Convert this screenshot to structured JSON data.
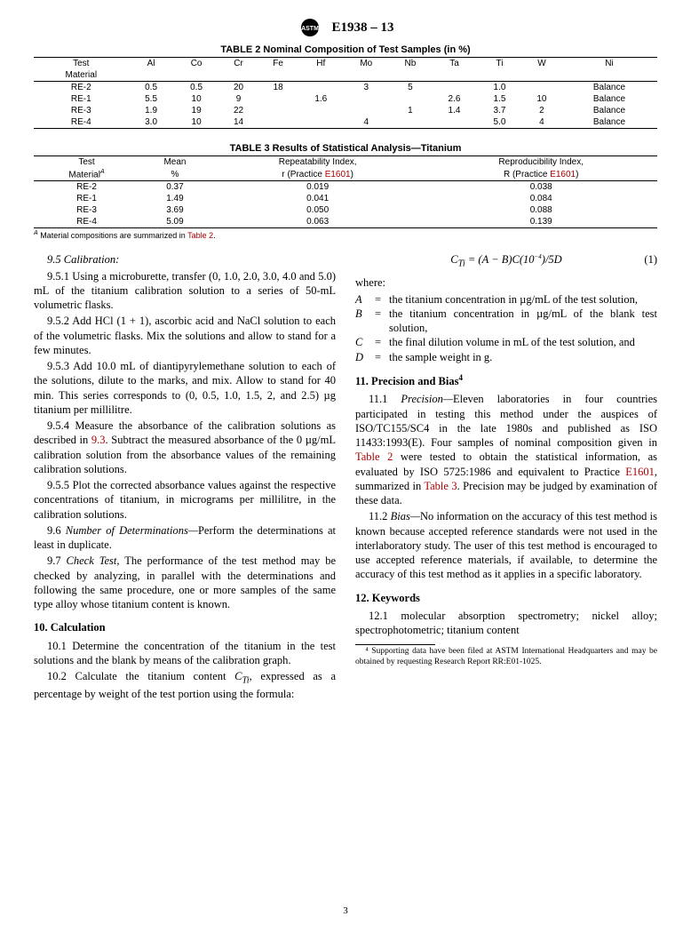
{
  "designation": "E1938 – 13",
  "table2": {
    "title": "TABLE 2 Nominal Composition of Test Samples (in %)",
    "columns": [
      "Test\nMaterial",
      "Al",
      "Co",
      "Cr",
      "Fe",
      "Hf",
      "Mo",
      "Nb",
      "Ta",
      "Ti",
      "W",
      "Ni"
    ],
    "rows": [
      [
        "RE-2",
        "0.5",
        "0.5",
        "20",
        "18",
        "",
        "3",
        "5",
        "",
        "1.0",
        "",
        "Balance"
      ],
      [
        "RE-1",
        "5.5",
        "10",
        "9",
        "",
        "1.6",
        "",
        "",
        "2.6",
        "1.5",
        "10",
        "Balance"
      ],
      [
        "RE-3",
        "1.9",
        "19",
        "22",
        "",
        "",
        "",
        "1",
        "1.4",
        "3.7",
        "2",
        "Balance"
      ],
      [
        "RE-4",
        "3.0",
        "10",
        "14",
        "",
        "",
        "4",
        "",
        "",
        "5.0",
        "4",
        "Balance"
      ]
    ]
  },
  "table3": {
    "title": "TABLE 3 Results of Statistical Analysis—Titanium",
    "columns": [
      "Test\nMaterialᴬ",
      "Mean\n%",
      "Repeatability Index,\nr (Practice E1601)",
      "Reproducibility Index,\nR (Practice E1601)"
    ],
    "rows": [
      [
        "RE-2",
        "0.37",
        "0.019",
        "0.038"
      ],
      [
        "RE-1",
        "1.49",
        "0.041",
        "0.084"
      ],
      [
        "RE-3",
        "3.69",
        "0.050",
        "0.088"
      ],
      [
        "RE-4",
        "5.09",
        "0.063",
        "0.139"
      ]
    ],
    "footnote_pre": "ᴬ Material compositions are summarized in ",
    "footnote_link": "Table 2",
    "footnote_post": "."
  },
  "body": {
    "s95": "9.5 Calibration:",
    "s951": "9.5.1 Using a microburette, transfer (0, 1.0, 2.0, 3.0, 4.0 and 5.0) mL of the titanium calibration solution to a series of 50-mL volumetric flasks.",
    "s952": "9.5.2 Add HCl (1 + 1), ascorbic acid and NaCl solution to each of the volumetric flasks. Mix the solutions and allow to stand for a few minutes.",
    "s953": "9.5.3 Add 10.0 mL of diantipyrylemethane solution to each of the solutions, dilute to the marks, and mix. Allow to stand for 40 min. This series corresponds to (0, 0.5, 1.0, 1.5, 2, and 2.5) µg titanium per millilitre.",
    "s954a": "9.5.4 Measure the absorbance of the calibration solutions as described in ",
    "s954link": "9.3",
    "s954b": ". Subtract the measured absorbance of the 0 µg/mL calibration solution from the absorbance values of the remaining calibration solutions.",
    "s955": "9.5.5 Plot the corrected absorbance values against the respective concentrations of titanium, in micrograms per millilitre, in the calibration solutions.",
    "s96": "9.6 Number of Determinations—Perform the determinations at least in duplicate.",
    "s97": "9.7 Check Test, The performance of the test method may be checked by analyzing, in parallel with the determinations and following the same procedure, one or more samples of the same type alloy whose titanium content is known.",
    "h10": "10. Calculation",
    "s101": "10.1 Determine the concentration of the titanium in the test solutions and the blank by means of the calibration graph.",
    "s102": "10.2 Calculate the titanium content Cₜᵢ, expressed as a percentage by weight of the test portion using the formula:",
    "eq": "Cₜᵢ = (A − B)C(10⁻⁴)/5D",
    "eqnum": "(1)",
    "where": "where:",
    "Adef": "the titanium concentration in µg/mL of the test solution,",
    "Bdef": "the titanium concentration in µg/mL of the blank test solution,",
    "Cdef": "the final dilution volume in mL of the test solution, and",
    "Ddef": "the sample weight in g.",
    "h11": "11. Precision and Bias⁴",
    "s111a": "11.1 Precision—Eleven laboratories in four countries participated in testing this method under the auspices of ISO/TC155/SC4 in the late 1980s and published as ISO 11433:1993(E). Four samples of nominal composition given in ",
    "s111link1": "Table 2",
    "s111b": " were tested to obtain the statistical information, as evaluated by ISO 5725:1986 and equivalent to Practice ",
    "s111link2": "E1601",
    "s111c": ", summarized in ",
    "s111link3": "Table 3",
    "s111d": ". Precision may be judged by examination of these data.",
    "s112": "11.2 Bias—No information on the accuracy of this test method is known because accepted reference standards were not used in the interlaboratory study. The user of this test method is encouraged to use accepted reference materials, if available, to determine the accuracy of this test method as it applies in a specific laboratory.",
    "h12": "12. Keywords",
    "s121": "12.1 molecular absorption spectrometry; nickel alloy; spectrophotometric; titanium content",
    "foot4": "⁴ Supporting data have been filed at ASTM International Headquarters and may be obtained by requesting Research Report RR:E01-1025."
  },
  "pagenum": "3"
}
